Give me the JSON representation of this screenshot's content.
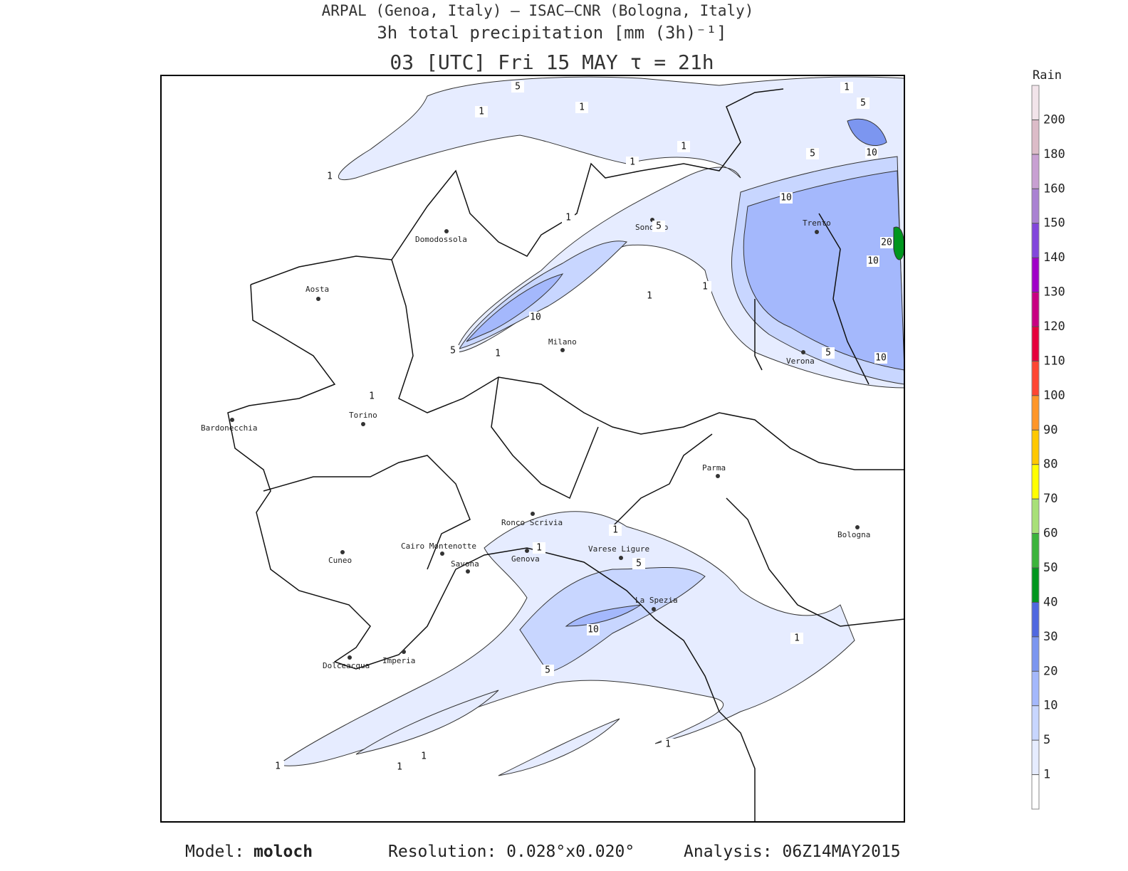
{
  "header": {
    "line1": "ARPAL (Genoa, Italy)  –  ISAC–CNR (Bologna, Italy)",
    "line2": "3h total precipitation [mm (3h)⁻¹]",
    "line3": "03 [UTC] Fri 15 MAY  τ = 21h"
  },
  "map": {
    "cities": [
      "Domodossola",
      "Aosta",
      "Milano",
      "Torino",
      "Bardonecchia",
      "Sondrio",
      "Trento",
      "Verona",
      "Parma",
      "Bologna",
      "Ronco Scrivia",
      "Cairo Montenotte",
      "Savona",
      "Genova",
      "Varese Ligure",
      "La Spezia",
      "Cuneo",
      "Imperia",
      "Dolceacqua"
    ],
    "contour_labels": [
      "5",
      "1",
      "1",
      "1",
      "1",
      "5",
      "5",
      "10",
      "10",
      "1",
      "1",
      "5",
      "20",
      "10",
      "1",
      "1",
      "1",
      "10",
      "5",
      "1",
      "5",
      "10",
      "1",
      "1",
      "1",
      "5",
      "10",
      "5",
      "1",
      "1",
      "1",
      "1",
      "1"
    ]
  },
  "legend": {
    "title": "Rain",
    "ticks": [
      1,
      5,
      10,
      20,
      30,
      40,
      50,
      60,
      70,
      80,
      90,
      100,
      110,
      120,
      130,
      140,
      150,
      160,
      180,
      200
    ],
    "colors": [
      "#ffffff",
      "#e6ecff",
      "#c8d6ff",
      "#a4b8fc",
      "#7c96f0",
      "#5068e0",
      "#00961e",
      "#3cb43c",
      "#a8e078",
      "#ffff00",
      "#ffc800",
      "#ff9628",
      "#ff4632",
      "#e6003c",
      "#c80082",
      "#a000c8",
      "#8246dc",
      "#aa82d2",
      "#c8a0d2",
      "#dcbcc8",
      "#f2e4ea"
    ]
  },
  "footer": {
    "model_label": "Model:",
    "model": "moloch",
    "resolution": "Resolution: 0.028°x0.020°",
    "analysis": "Analysis: 06Z14MAY2015"
  }
}
